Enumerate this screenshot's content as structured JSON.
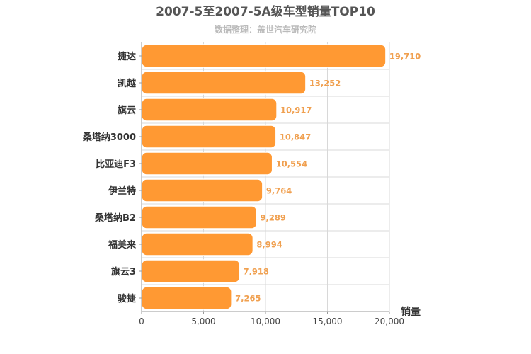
{
  "chart_data": {
    "type": "bar",
    "orientation": "horizontal",
    "title": "2007-5至2007-5A级车型销量TOP10",
    "subtitle": "数据整理：盖世汽车研究院",
    "categories": [
      "捷达",
      "凯越",
      "旗云",
      "桑塔纳3000",
      "比亚迪F3",
      "伊兰特",
      "桑塔纳B2",
      "福美来",
      "旗云3",
      "骏捷"
    ],
    "values": [
      19710,
      13252,
      10917,
      10847,
      10554,
      9764,
      9289,
      8994,
      7918,
      7265
    ],
    "value_labels": [
      "19,710",
      "13,252",
      "10,917",
      "10,847",
      "10,554",
      "9,764",
      "9,289",
      "8,994",
      "7,918",
      "7,265"
    ],
    "xlabel": "销量",
    "ylabel": "",
    "xlim": [
      0,
      20000
    ],
    "ticks": [
      0,
      5000,
      10000,
      15000,
      20000
    ],
    "tick_labels": [
      "0",
      "5,000",
      "10,000",
      "15,000",
      "20,000"
    ],
    "grid": true,
    "bar_color": "#ff9933",
    "bar_stroke": "#ffffff",
    "value_label_color": "#f0a050",
    "grid_color": "#d8d8d8",
    "axis_color": "#999999"
  }
}
